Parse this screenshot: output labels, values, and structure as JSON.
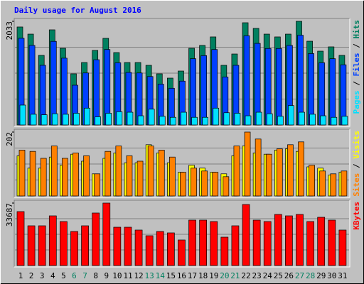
{
  "chart_data": [
    {
      "type": "bar",
      "title": "Daily usage for August 2016",
      "title_color": "#0000ff",
      "ylim": [
        0,
        2033
      ],
      "yticks": [
        2033
      ],
      "legend_separator": " / ",
      "series": [
        {
          "name": "Hits",
          "color": "#008060",
          "values": [
            1922,
            1782,
            1365,
            1866,
            1504,
            1003,
            1225,
            1462,
            1699,
            1420,
            1225,
            1225,
            1170,
            1003,
            919,
            1058,
            1504,
            1560,
            1727,
            1170,
            1392,
            2005,
            1894,
            1782,
            1727,
            1782,
            2033,
            1643,
            1448,
            1532,
            1365
          ]
        },
        {
          "name": "Files",
          "color": "#0040ff",
          "values": [
            1700,
            1560,
            1170,
            1640,
            1310,
            780,
            1020,
            1280,
            1480,
            1220,
            1030,
            1020,
            950,
            800,
            720,
            860,
            1300,
            1360,
            1480,
            940,
            1170,
            1750,
            1600,
            1500,
            1500,
            1560,
            1760,
            1400,
            1220,
            1300,
            1180
          ]
        },
        {
          "name": "Pages",
          "color": "#00e0ff",
          "values": [
            390,
            210,
            200,
            220,
            210,
            230,
            330,
            160,
            230,
            260,
            250,
            180,
            310,
            170,
            150,
            250,
            150,
            150,
            330,
            240,
            230,
            180,
            250,
            220,
            170,
            380,
            250,
            210,
            180,
            150,
            170
          ]
        }
      ]
    },
    {
      "type": "bar",
      "ylim": [
        0,
        202
      ],
      "yticks": [
        202
      ],
      "legend_separator": " / ",
      "series": [
        {
          "name": "Visits",
          "color": "#ffff00",
          "values": [
            127,
            88,
            88,
            123,
            97,
            132,
            110,
            70,
            119,
            136,
            105,
            105,
            162,
            136,
            105,
            75,
            97,
            88,
            75,
            70,
            127,
            158,
            136,
            132,
            145,
            149,
            141,
            92,
            88,
            66,
            75
          ]
        },
        {
          "name": "Sites",
          "color": "#ff8000",
          "values": [
            145,
            141,
            119,
            158,
            119,
            136,
            127,
            70,
            141,
            158,
            127,
            110,
            158,
            145,
            123,
            75,
            88,
            79,
            75,
            61,
            158,
            202,
            180,
            132,
            149,
            162,
            171,
            97,
            79,
            70,
            79
          ]
        }
      ]
    },
    {
      "type": "bar",
      "ylim": [
        0,
        33687
      ],
      "yticks": [
        33687
      ],
      "categories": [
        "1",
        "2",
        "3",
        "4",
        "5",
        "6",
        "7",
        "8",
        "9",
        "10",
        "11",
        "12",
        "13",
        "14",
        "15",
        "16",
        "17",
        "18",
        "19",
        "20",
        "21",
        "22",
        "23",
        "24",
        "25",
        "26",
        "27",
        "28",
        "29",
        "30",
        "31"
      ],
      "category_colors": [
        "#000000",
        "#000000",
        "#000000",
        "#000000",
        "#000000",
        "#008060",
        "#008060",
        "#000000",
        "#000000",
        "#000000",
        "#000000",
        "#000000",
        "#008060",
        "#008060",
        "#000000",
        "#000000",
        "#000000",
        "#000000",
        "#000000",
        "#008060",
        "#008060",
        "#000000",
        "#000000",
        "#000000",
        "#000000",
        "#000000",
        "#008060",
        "#008060",
        "#000000",
        "#000000",
        "#000000"
      ],
      "series": [
        {
          "name": "KBytes",
          "color": "#ff0000",
          "values": [
            29093,
            21437,
            21437,
            26796,
            23734,
            18374,
            21437,
            28327,
            33687,
            20671,
            20671,
            19140,
            16078,
            18374,
            17609,
            13781,
            24499,
            24499,
            23734,
            15312,
            21437,
            32921,
            24499,
            23734,
            27562,
            26796,
            27562,
            23734,
            26030,
            24499,
            19140
          ]
        }
      ]
    }
  ]
}
